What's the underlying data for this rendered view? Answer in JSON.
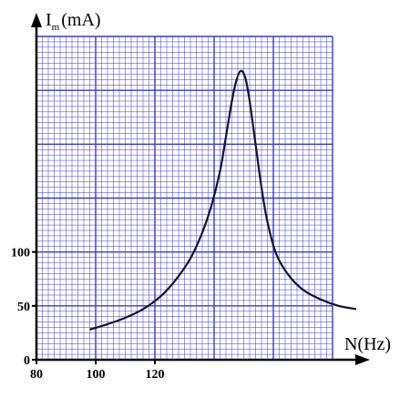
{
  "chart_data": {
    "type": "line",
    "title": "",
    "xlabel": "N(Hz)",
    "ylabel": {
      "symbol": "I",
      "subscript": "m",
      "unit": "(mA)"
    },
    "x_ticks": [
      "80",
      "100",
      "120"
    ],
    "y_ticks": [
      "0",
      "50",
      "100"
    ],
    "xlim": [
      80,
      180
    ],
    "ylim": [
      0,
      300
    ],
    "grid": true,
    "grid_color": "#3a3ad6",
    "curve_color": "#111133",
    "series": [
      {
        "x": [
          98,
          104,
          110,
          116,
          122,
          127,
          132,
          136,
          139,
          142,
          144,
          146,
          147.5,
          149,
          150.5,
          152,
          154,
          156,
          158,
          161,
          165,
          170,
          176,
          182,
          188
        ],
        "y": [
          28,
          33,
          39,
          47,
          59,
          74,
          94,
          118,
          142,
          175,
          207,
          240,
          259,
          268,
          262,
          240,
          200,
          160,
          128,
          98,
          79,
          65,
          56,
          50,
          47
        ]
      }
    ]
  }
}
